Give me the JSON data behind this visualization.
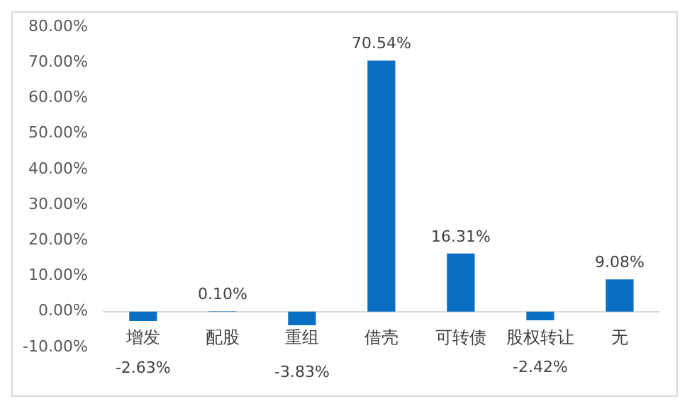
{
  "chart_data": {
    "type": "bar",
    "categories": [
      "增发",
      "配股",
      "重组",
      "借壳",
      "可转债",
      "股权转让",
      "无"
    ],
    "values": [
      -2.63,
      0.1,
      -3.83,
      70.54,
      16.31,
      -2.42,
      9.08
    ],
    "value_labels": [
      "-2.63%",
      "0.10%",
      "-3.83%",
      "70.54%",
      "16.31%",
      "-2.42%",
      "9.08%"
    ],
    "color": "#0a6ec2",
    "ylim": [
      -10,
      80
    ],
    "yticks": [
      {
        "value": -10,
        "label": "-10.00%"
      },
      {
        "value": 0,
        "label": "0.00%"
      },
      {
        "value": 10,
        "label": "10.00%"
      },
      {
        "value": 20,
        "label": "20.00%"
      },
      {
        "value": 30,
        "label": "30.00%"
      },
      {
        "value": 40,
        "label": "40.00%"
      },
      {
        "value": 50,
        "label": "50.00%"
      },
      {
        "value": 60,
        "label": "60.00%"
      },
      {
        "value": 70,
        "label": "70.00%"
      },
      {
        "value": 80,
        "label": "80.00%"
      }
    ],
    "grid": false,
    "legend": false
  }
}
